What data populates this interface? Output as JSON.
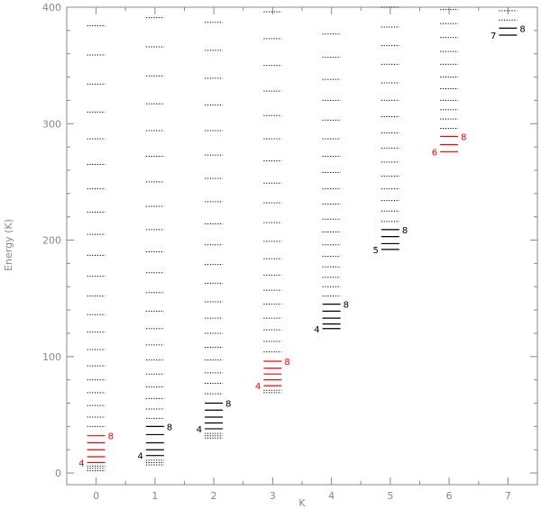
{
  "chart_data": {
    "type": "scatter",
    "xlabel": "K",
    "ylabel": "Energy (K)",
    "xlim": [
      -0.5,
      7.5
    ],
    "ylim": [
      -10,
      400
    ],
    "xticks": [
      "0",
      "1",
      "2",
      "3",
      "4",
      "5",
      "6",
      "7"
    ],
    "yticks": [
      "0",
      "100",
      "200",
      "300",
      "400"
    ],
    "grid": false,
    "colors": {
      "highlight": "#ff0000",
      "line": "#000000",
      "dotted": "#000000",
      "axis": "#888888"
    },
    "columns": [
      {
        "K": 0,
        "highlight_color": "#ff0000",
        "highlighted": [
          9,
          14,
          20,
          26,
          32
        ],
        "dotted": [
          2,
          4,
          6,
          40,
          48,
          58,
          69,
          80,
          92,
          106,
          121,
          136,
          152,
          169,
          187,
          205,
          224,
          244,
          265,
          287,
          310,
          334,
          359,
          384
        ],
        "low_label": "4",
        "high_label": "8"
      },
      {
        "K": 1,
        "highlight_color": "#000000",
        "highlighted": [
          15,
          20,
          26,
          33,
          40
        ],
        "dotted": [
          7,
          9,
          11,
          47,
          55,
          64,
          74,
          85,
          97,
          110,
          124,
          139,
          155,
          172,
          190,
          209,
          229,
          250,
          272,
          294,
          317,
          341,
          366,
          391
        ],
        "low_label": "4",
        "high_label": "8"
      },
      {
        "K": 2,
        "highlight_color": "#000000",
        "highlighted": [
          38,
          43,
          48,
          54,
          60
        ],
        "dotted": [
          30,
          32,
          34,
          68,
          77,
          86,
          97,
          108,
          120,
          133,
          147,
          163,
          179,
          196,
          214,
          233,
          253,
          273,
          294,
          316,
          339,
          363,
          387
        ],
        "low_label": "4",
        "high_label": "8"
      },
      {
        "K": 3,
        "highlight_color": "#ff0000",
        "highlighted": [
          75,
          80,
          85,
          90,
          96
        ],
        "dotted": [
          69,
          71,
          104,
          113,
          123,
          133,
          145,
          157,
          170,
          184,
          199,
          215,
          232,
          249,
          268,
          287,
          307,
          328,
          350,
          373,
          396
        ],
        "low_label": "4",
        "high_label": "8"
      },
      {
        "K": 4,
        "highlight_color": "#000000",
        "highlighted": [
          124,
          128,
          133,
          139,
          145
        ],
        "dotted": [
          152,
          160,
          168,
          177,
          186,
          196,
          207,
          218,
          231,
          244,
          258,
          272,
          287,
          303,
          320,
          338,
          357,
          377
        ],
        "low_label": "4",
        "high_label": "8"
      },
      {
        "K": 5,
        "highlight_color": "#000000",
        "highlighted": [
          192,
          197,
          203,
          209
        ],
        "dotted": [
          216,
          225,
          234,
          244,
          255,
          267,
          279,
          292,
          306,
          320,
          335,
          351,
          367,
          383,
          400
        ],
        "low_label": "5",
        "high_label": "8"
      },
      {
        "K": 6,
        "highlight_color": "#ff0000",
        "highlighted": [
          276,
          282,
          289
        ],
        "dotted": [
          296,
          304,
          312,
          320,
          330,
          340,
          351,
          362,
          374,
          386,
          398
        ],
        "low_label": "6",
        "high_label": "8"
      },
      {
        "K": 7,
        "highlight_color": "#000000",
        "highlighted": [
          376,
          382
        ],
        "dotted": [
          389,
          397
        ],
        "low_label": "7",
        "high_label": "8"
      }
    ]
  }
}
